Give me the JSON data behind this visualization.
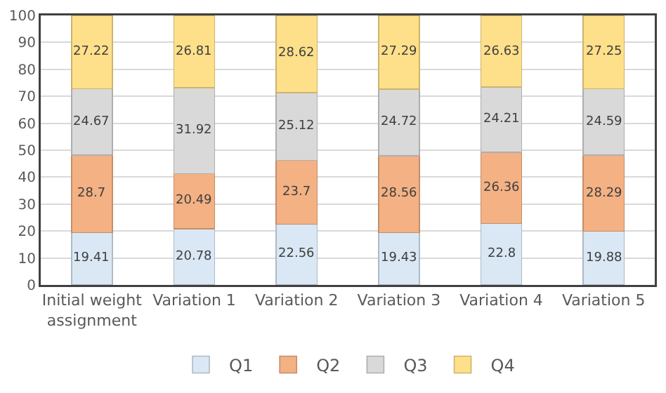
{
  "chart_data": {
    "type": "bar",
    "stacked": true,
    "categories": [
      "Initial weight assignment",
      "Variation 1",
      "Variation 2",
      "Variation 3",
      "Variation 4",
      "Variation 5"
    ],
    "series": [
      {
        "name": "Q1",
        "color": "#dae8f5",
        "values": [
          19.41,
          20.78,
          22.56,
          19.43,
          22.8,
          19.88
        ]
      },
      {
        "name": "Q2",
        "color": "#f4b183",
        "values": [
          28.7,
          20.49,
          23.7,
          28.56,
          26.36,
          28.29
        ]
      },
      {
        "name": "Q3",
        "color": "#d9d9d9",
        "values": [
          24.67,
          31.92,
          25.12,
          24.72,
          24.21,
          24.59
        ]
      },
      {
        "name": "Q4",
        "color": "#ffe08a",
        "values": [
          27.22,
          26.81,
          28.62,
          27.29,
          26.63,
          27.25
        ]
      }
    ],
    "ylim": [
      0,
      100
    ],
    "yticks": [
      0,
      10,
      20,
      30,
      40,
      50,
      60,
      70,
      80,
      90,
      100
    ],
    "grid": "y",
    "legend": "bottom",
    "data_labels": true
  }
}
